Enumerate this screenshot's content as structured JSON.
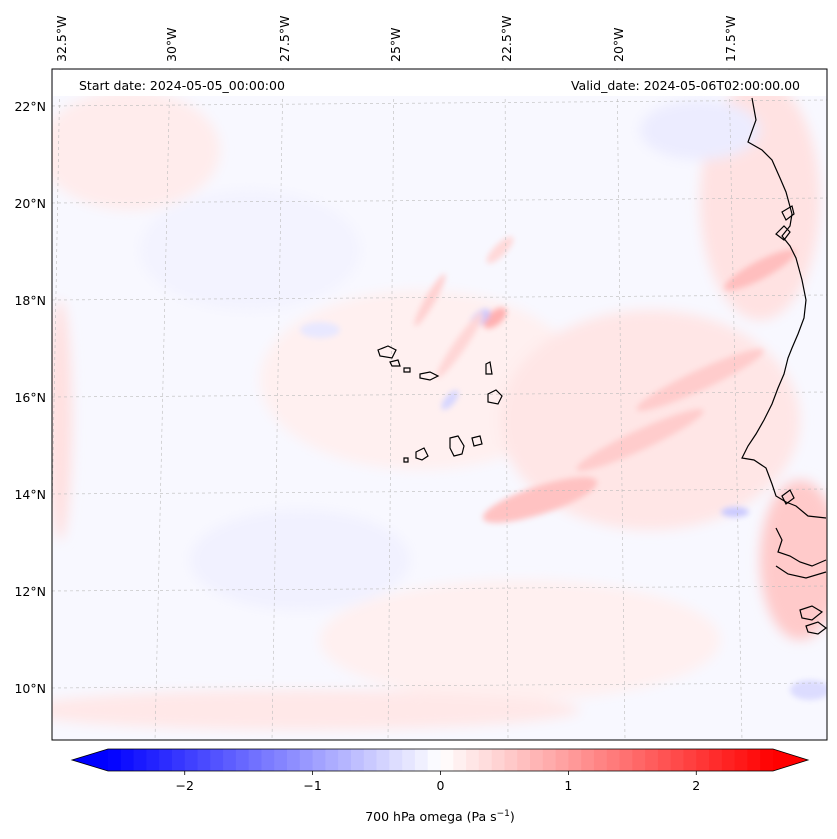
{
  "header": {
    "start_date": "Start date: 2024-05-05_00:00:00",
    "valid_date": "Valid_date: 2024-05-06T02:00:00.00"
  },
  "map": {
    "region": "Cape Verde / West African coast",
    "lon_labels": [
      "32.5°W",
      "30°W",
      "27.5°W",
      "25°W",
      "22.5°W",
      "20°W",
      "17.5°W"
    ],
    "lat_labels": [
      "22°N",
      "20°N",
      "18°N",
      "16°N",
      "14°N",
      "12°N",
      "10°N"
    ],
    "gridlines": true,
    "coastline_color": "#000000"
  },
  "colorbar": {
    "label_main": "700 hPa omega (Pa s",
    "label_sup": "−1",
    "label_end": ")",
    "ticks": [
      "−2",
      "−1",
      "0",
      "1",
      "2"
    ],
    "range": [
      -2.6,
      2.6
    ],
    "extend": "both",
    "colormap": "bwr",
    "low_color": "#0000ff",
    "mid_color": "#ffffff",
    "high_color": "#ff0000"
  }
}
